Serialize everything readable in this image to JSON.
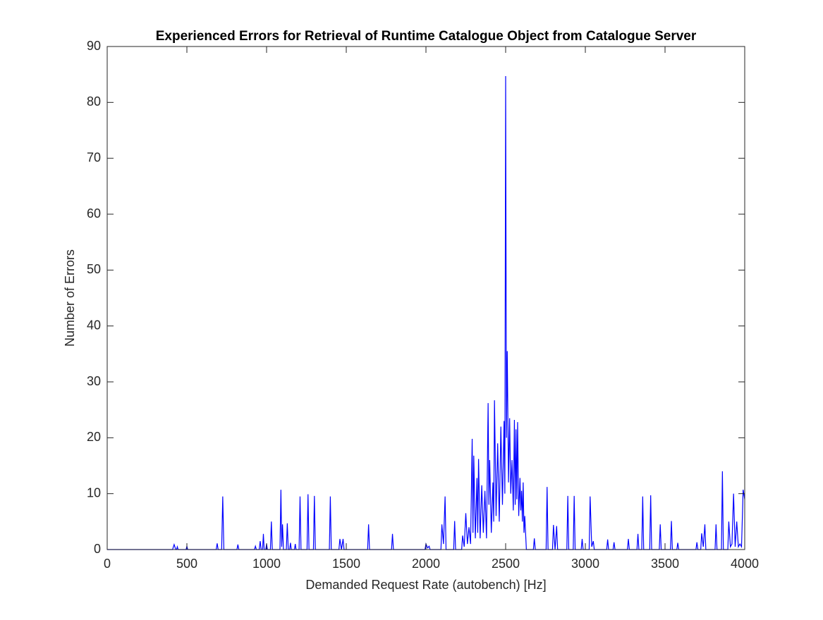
{
  "chart_data": {
    "type": "line",
    "title": "Experienced Errors for Retrieval of Runtime Catalogue Object from Catalogue Server",
    "xlabel": "Demanded Request Rate (autobench) [Hz]",
    "ylabel": "Number of Errors",
    "xlim": [
      0,
      4000
    ],
    "ylim": [
      0,
      90
    ],
    "xticks": [
      0,
      500,
      1000,
      1500,
      2000,
      2500,
      3000,
      3500,
      4000
    ],
    "yticks": [
      0,
      10,
      20,
      30,
      40,
      50,
      60,
      70,
      80,
      90
    ],
    "color": "#0000ff",
    "x": [
      0,
      410,
      420,
      430,
      435,
      440,
      445,
      495,
      500,
      505,
      684,
      690,
      696,
      718,
      725,
      732,
      814,
      820,
      826,
      924,
      930,
      936,
      954,
      960,
      966,
      975,
      980,
      985,
      995,
      1000,
      1005,
      1024,
      1030,
      1036,
      1084,
      1090,
      1095,
      1100,
      1106,
      1124,
      1130,
      1136,
      1145,
      1150,
      1155,
      1175,
      1180,
      1185,
      1204,
      1210,
      1216,
      1254,
      1260,
      1266,
      1294,
      1300,
      1306,
      1394,
      1400,
      1406,
      1454,
      1460,
      1470,
      1480,
      1486,
      1634,
      1640,
      1646,
      1784,
      1790,
      1796,
      1994,
      2000,
      2010,
      2020,
      2026,
      2094,
      2100,
      2110,
      2120,
      2126,
      2174,
      2180,
      2186,
      2224,
      2230,
      2240,
      2250,
      2260,
      2270,
      2280,
      2290,
      2295,
      2300,
      2310,
      2320,
      2325,
      2330,
      2340,
      2350,
      2360,
      2370,
      2380,
      2390,
      2395,
      2400,
      2410,
      2420,
      2425,
      2430,
      2440,
      2450,
      2460,
      2470,
      2480,
      2490,
      2495,
      2500,
      2505,
      2510,
      2518,
      2525,
      2532,
      2540,
      2548,
      2555,
      2560,
      2565,
      2570,
      2575,
      2582,
      2590,
      2595,
      2600,
      2605,
      2610,
      2615,
      2620,
      2630,
      2674,
      2680,
      2686,
      2754,
      2760,
      2766,
      2794,
      2800,
      2810,
      2820,
      2826,
      2884,
      2890,
      2896,
      2924,
      2930,
      2936,
      2974,
      2980,
      2986,
      3024,
      3030,
      3040,
      3050,
      3056,
      3134,
      3140,
      3146,
      3174,
      3180,
      3186,
      3264,
      3270,
      3276,
      3324,
      3330,
      3336,
      3354,
      3360,
      3366,
      3404,
      3410,
      3416,
      3464,
      3470,
      3476,
      3534,
      3540,
      3546,
      3574,
      3580,
      3586,
      3694,
      3700,
      3706,
      3724,
      3730,
      3740,
      3750,
      3756,
      3814,
      3820,
      3826,
      3854,
      3860,
      3866,
      3894,
      3900,
      3910,
      3920,
      3930,
      3940,
      3950,
      3960,
      3970,
      3980,
      3990,
      4000
    ],
    "values": [
      0,
      0,
      0.9,
      0,
      0,
      0.5,
      0,
      0,
      0.6,
      0,
      0,
      1.1,
      0,
      0,
      9.5,
      0,
      0,
      0.9,
      0,
      0,
      0.6,
      0,
      0,
      1.5,
      0,
      0,
      2.8,
      0,
      0,
      1.0,
      0,
      0,
      5.0,
      0,
      0,
      10.7,
      0.5,
      4.5,
      0,
      0,
      4.7,
      0,
      0,
      1.2,
      0,
      0,
      1.0,
      0,
      0,
      9.5,
      0,
      0,
      9.9,
      0,
      0,
      9.6,
      0,
      0,
      9.5,
      0,
      0,
      1.9,
      0,
      1.9,
      0,
      0,
      4.5,
      0,
      0,
      2.8,
      0,
      0,
      1.0,
      0.3,
      0.6,
      0,
      0,
      4.5,
      1,
      9.5,
      0,
      0,
      5.1,
      0,
      0,
      2.5,
      0.5,
      6.5,
      1,
      4,
      1,
      19.8,
      3,
      16.8,
      2,
      12.8,
      3,
      16.2,
      2,
      11.5,
      3,
      10.5,
      2,
      26.2,
      8,
      16,
      3,
      12,
      5,
      26.7,
      6,
      19,
      5,
      22,
      8,
      23,
      10,
      84.7,
      20,
      35.5,
      12,
      23.5,
      10,
      16,
      7,
      23.2,
      8,
      21.5,
      9,
      22.8,
      6,
      12.8,
      7,
      10.5,
      5,
      12,
      3,
      6,
      0,
      0,
      2,
      0,
      0,
      11.2,
      0,
      0,
      4.4,
      0,
      4.2,
      0,
      0,
      9.6,
      0,
      0,
      9.6,
      0,
      0,
      1.9,
      0,
      0,
      9.5,
      0.5,
      1.5,
      0,
      0,
      1.8,
      0,
      0,
      1.3,
      0,
      0,
      1.9,
      0,
      0,
      2.8,
      0,
      0,
      9.5,
      0,
      0,
      9.7,
      0,
      0,
      4.5,
      0,
      0,
      5.1,
      0,
      0,
      1.2,
      0,
      0,
      1.3,
      0,
      0,
      2.9,
      0.5,
      4.5,
      0,
      0,
      4.5,
      0,
      0,
      14,
      0,
      0,
      5.0,
      0.5,
      1,
      10,
      0.5,
      5,
      0.5,
      1,
      0.5,
      10.7,
      9
    ]
  }
}
